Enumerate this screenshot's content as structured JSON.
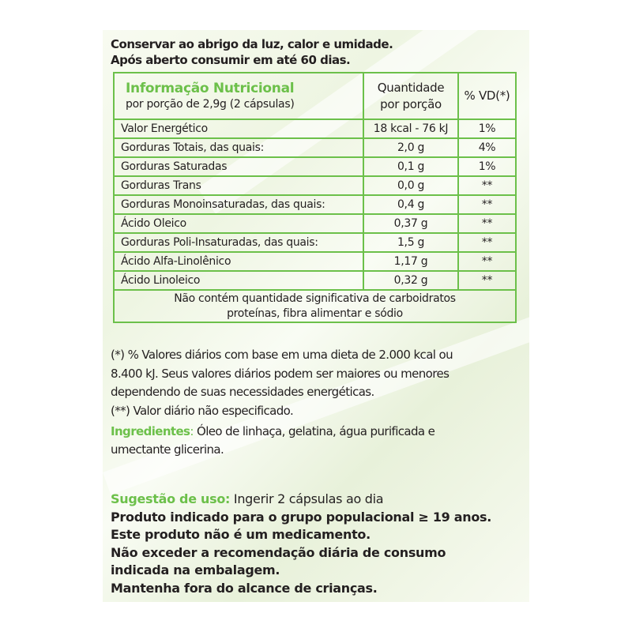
{
  "storage": [
    "Conservar ao abrigo da luz, calor e umidade.",
    "Após aberto consumir em até 60 dias."
  ],
  "table": {
    "title": "Informação Nutricional",
    "serving": "por porção de 2,9g (2 cápsulas)",
    "col_qty_1": "Quantidade",
    "col_qty_2": "por porção",
    "col_vd": "% VD(*)",
    "rows": [
      {
        "name": "Valor Energético",
        "qty": "18 kcal - 76 kJ",
        "vd": "1%"
      },
      {
        "name": "Gorduras Totais, das quais:",
        "qty": "2,0 g",
        "vd": "4%"
      },
      {
        "name": "Gorduras Saturadas",
        "qty": "0,1 g",
        "vd": "1%"
      },
      {
        "name": "Gorduras Trans",
        "qty": "0,0 g",
        "vd": "**"
      },
      {
        "name": "Gorduras Monoinsaturadas, das quais:",
        "qty": "0,4 g",
        "vd": "**"
      },
      {
        "name": "Ácido Oleico",
        "qty": "0,37 g",
        "vd": "**"
      },
      {
        "name": "Gorduras Poli-Insaturadas, das quais:",
        "qty": "1,5 g",
        "vd": "**"
      },
      {
        "name": "Ácido Alfa-Linolênico",
        "qty": "1,17 g",
        "vd": "**"
      },
      {
        "name": "Ácido Linoleico",
        "qty": "0,32 g",
        "vd": "**"
      }
    ],
    "footer_1": "Não contém quantidade significativa de carboidratos",
    "footer_2": "proteínas, fibra alimentar e sódio"
  },
  "notes": [
    "(*) % Valores diários com base em uma dieta de 2.000 kcal ou",
    "8.400 kJ. Seus valores diários podem ser maiores ou menores",
    "dependendo de suas necessidades energéticas.",
    "(**) Valor diário não especificado."
  ],
  "ingredients": {
    "label": "Ingredientes",
    "sep": ": ",
    "text_1": "Óleo de linhaça, gelatina, água purificada e",
    "text_2": "umectante glicerina."
  },
  "usage": {
    "label": "Sugestão de uso:",
    "text": " Ingerir 2 cápsulas ao dia",
    "lines": [
      "Produto indicado para o grupo populacional ≥ 19 anos.",
      "Este produto não é um medicamento.",
      "Não exceder a recomendação diária de consumo",
      "indicada na embalagem.",
      "Mantenha fora do alcance de crianças."
    ]
  },
  "colors": {
    "accent": "#6cc04a",
    "text": "#231f20"
  }
}
